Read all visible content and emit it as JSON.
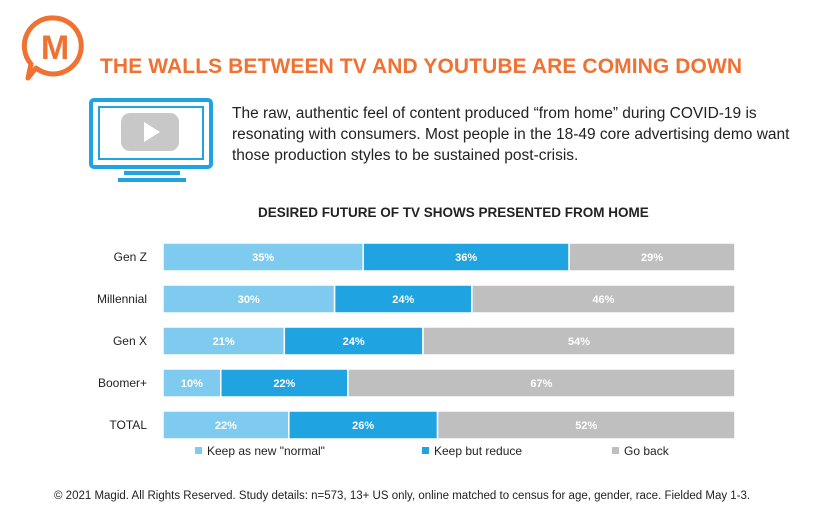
{
  "brand": {
    "logo_letter": "M",
    "accent": "#f07233"
  },
  "headline": "THE WALLS BETWEEN TV AND YOUTUBE ARE COMING DOWN",
  "intro": "The raw, authentic feel of content produced “from home” during COVID-19 is resonating with consumers. Most people in the 18-49 core advertising demo want those production styles to be sustained post-crisis.",
  "icons": {
    "tv": "tv-play-icon"
  },
  "chart_data": {
    "type": "bar",
    "orientation": "horizontal",
    "stacked": true,
    "title": "DESIRED FUTURE OF TV SHOWS PRESENTED FROM HOME",
    "categories": [
      "Gen Z",
      "Millennial",
      "Gen X",
      "Boomer+",
      "TOTAL"
    ],
    "series": [
      {
        "name": "Keep as new \"normal\"",
        "color": "#7fcaef",
        "values": [
          35,
          30,
          21,
          10,
          22
        ]
      },
      {
        "name": "Keep but reduce",
        "color": "#1fa3e1",
        "values": [
          36,
          24,
          24,
          22,
          26
        ]
      },
      {
        "name": "Go back",
        "color": "#bfbfbf",
        "values": [
          29,
          46,
          54,
          67,
          52
        ]
      }
    ],
    "value_suffix": "%",
    "legend_position": "bottom",
    "grid": false
  },
  "footer": "© 2021 Magid. All Rights Reserved. Study details: n=573, 13+ US only, online matched to census for age, gender, race. Fielded May 1-3."
}
